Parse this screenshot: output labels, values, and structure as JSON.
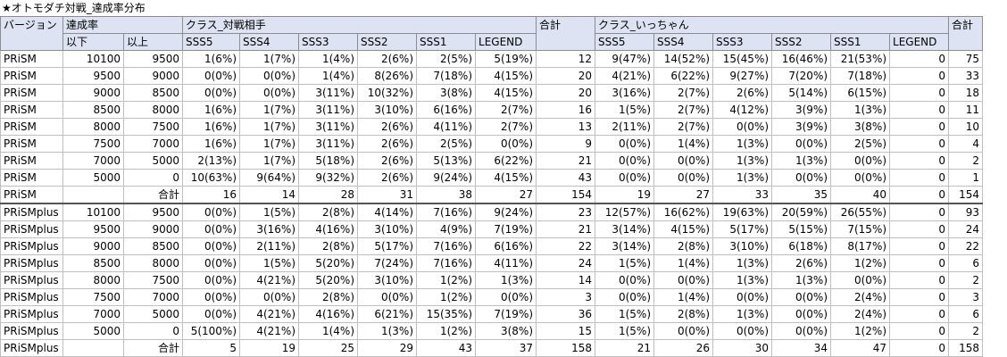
{
  "title": "★オトモダチ対戦_達成率分布",
  "header": {
    "row1": [
      "バージョン",
      "達成率",
      "クラス_対戦相手",
      "合計",
      "クラス_いっちゃん",
      "合計"
    ],
    "row2": [
      "以下",
      "以上",
      "SSS5",
      "SSS4",
      "SSS3",
      "SSS2",
      "SSS1",
      "LEGEND",
      "SSS5",
      "SSS4",
      "SSS3",
      "SSS2",
      "SSS1",
      "LEGEND"
    ]
  },
  "sections": [
    {
      "rows": [
        [
          "PRiSM",
          10100,
          9500,
          "1(6%)",
          "1(7%)",
          "1(4%)",
          "2(6%)",
          "2(5%)",
          "5(19%)",
          12,
          "9(47%)",
          "14(52%)",
          "15(45%)",
          "16(46%)",
          "21(53%)",
          0,
          75
        ],
        [
          "PRiSM",
          9500,
          9000,
          "0(0%)",
          "0(0%)",
          "1(4%)",
          "8(26%)",
          "7(18%)",
          "4(15%)",
          20,
          "4(21%)",
          "6(22%)",
          "9(27%)",
          "7(20%)",
          "7(18%)",
          0,
          33
        ],
        [
          "PRiSM",
          9000,
          8500,
          "0(0%)",
          "0(0%)",
          "3(11%)",
          "10(32%)",
          "3(8%)",
          "4(15%)",
          20,
          "3(16%)",
          "2(7%)",
          "2(6%)",
          "5(14%)",
          "6(15%)",
          0,
          18
        ],
        [
          "PRiSM",
          8500,
          8000,
          "1(6%)",
          "1(7%)",
          "3(11%)",
          "3(10%)",
          "6(16%)",
          "2(7%)",
          16,
          "1(5%)",
          "2(7%)",
          "4(12%)",
          "3(9%)",
          "1(3%)",
          0,
          11
        ],
        [
          "PRiSM",
          8000,
          7500,
          "1(6%)",
          "1(7%)",
          "3(11%)",
          "2(6%)",
          "4(11%)",
          "2(7%)",
          13,
          "2(11%)",
          "2(7%)",
          "0(0%)",
          "3(9%)",
          "3(8%)",
          0,
          10
        ],
        [
          "PRiSM",
          7500,
          7000,
          "1(6%)",
          "1(7%)",
          "3(11%)",
          "2(6%)",
          "2(5%)",
          "0(0%)",
          9,
          "0(0%)",
          "1(4%)",
          "1(3%)",
          "0(0%)",
          "2(5%)",
          0,
          4
        ],
        [
          "PRiSM",
          7000,
          5000,
          "2(13%)",
          "1(7%)",
          "5(18%)",
          "2(6%)",
          "5(13%)",
          "6(22%)",
          21,
          "0(0%)",
          "0(0%)",
          "1(3%)",
          "1(3%)",
          "0(0%)",
          0,
          2
        ],
        [
          "PRiSM",
          5000,
          0,
          "10(63%)",
          "9(64%)",
          "9(32%)",
          "2(6%)",
          "9(24%)",
          "4(15%)",
          43,
          "0(0%)",
          "0(0%)",
          "1(3%)",
          "0(0%)",
          "0(0%)",
          0,
          1
        ]
      ],
      "total": {
        "version": "PRiSM",
        "label": "合計",
        "values": [
          16,
          14,
          28,
          31,
          38,
          27,
          154,
          19,
          27,
          33,
          35,
          40,
          0,
          154
        ]
      }
    },
    {
      "rows": [
        [
          "PRiSMplus",
          10100,
          9500,
          "0(0%)",
          "1(5%)",
          "2(8%)",
          "4(14%)",
          "7(16%)",
          "9(24%)",
          23,
          "12(57%)",
          "16(62%)",
          "19(63%)",
          "20(59%)",
          "26(55%)",
          0,
          93
        ],
        [
          "PRiSMplus",
          9500,
          9000,
          "0(0%)",
          "3(16%)",
          "4(16%)",
          "3(10%)",
          "4(9%)",
          "7(19%)",
          21,
          "3(14%)",
          "4(15%)",
          "5(17%)",
          "5(15%)",
          "7(15%)",
          0,
          24
        ],
        [
          "PRiSMplus",
          9000,
          8500,
          "0(0%)",
          "2(11%)",
          "2(8%)",
          "5(17%)",
          "7(16%)",
          "6(16%)",
          22,
          "3(14%)",
          "2(8%)",
          "3(10%)",
          "6(18%)",
          "8(17%)",
          0,
          22
        ],
        [
          "PRiSMplus",
          8500,
          8000,
          "0(0%)",
          "1(5%)",
          "5(20%)",
          "7(24%)",
          "7(16%)",
          "4(11%)",
          24,
          "1(5%)",
          "1(4%)",
          "1(3%)",
          "2(6%)",
          "1(2%)",
          0,
          6
        ],
        [
          "PRiSMplus",
          8000,
          7500,
          "0(0%)",
          "4(21%)",
          "5(20%)",
          "3(10%)",
          "1(2%)",
          "1(3%)",
          14,
          "0(0%)",
          "0(0%)",
          "1(3%)",
          "1(3%)",
          "0(0%)",
          0,
          2
        ],
        [
          "PRiSMplus",
          7500,
          7000,
          "0(0%)",
          "0(0%)",
          "2(8%)",
          "0(0%)",
          "1(2%)",
          "0(0%)",
          3,
          "0(0%)",
          "1(4%)",
          "0(0%)",
          "0(0%)",
          "2(4%)",
          0,
          3
        ],
        [
          "PRiSMplus",
          7000,
          5000,
          "0(0%)",
          "4(21%)",
          "4(16%)",
          "6(21%)",
          "15(35%)",
          "7(19%)",
          36,
          "1(5%)",
          "2(8%)",
          "1(3%)",
          "0(0%)",
          "2(4%)",
          0,
          6
        ],
        [
          "PRiSMplus",
          5000,
          0,
          "5(100%)",
          "4(21%)",
          "1(4%)",
          "1(3%)",
          "1(2%)",
          "3(8%)",
          15,
          "1(5%)",
          "0(0%)",
          "0(0%)",
          "0(0%)",
          "1(2%)",
          0,
          2
        ]
      ],
      "total": {
        "version": "PRiSMplus",
        "label": "合計",
        "values": [
          5,
          19,
          25,
          29,
          43,
          37,
          158,
          21,
          26,
          30,
          34,
          47,
          0,
          158
        ]
      }
    }
  ]
}
